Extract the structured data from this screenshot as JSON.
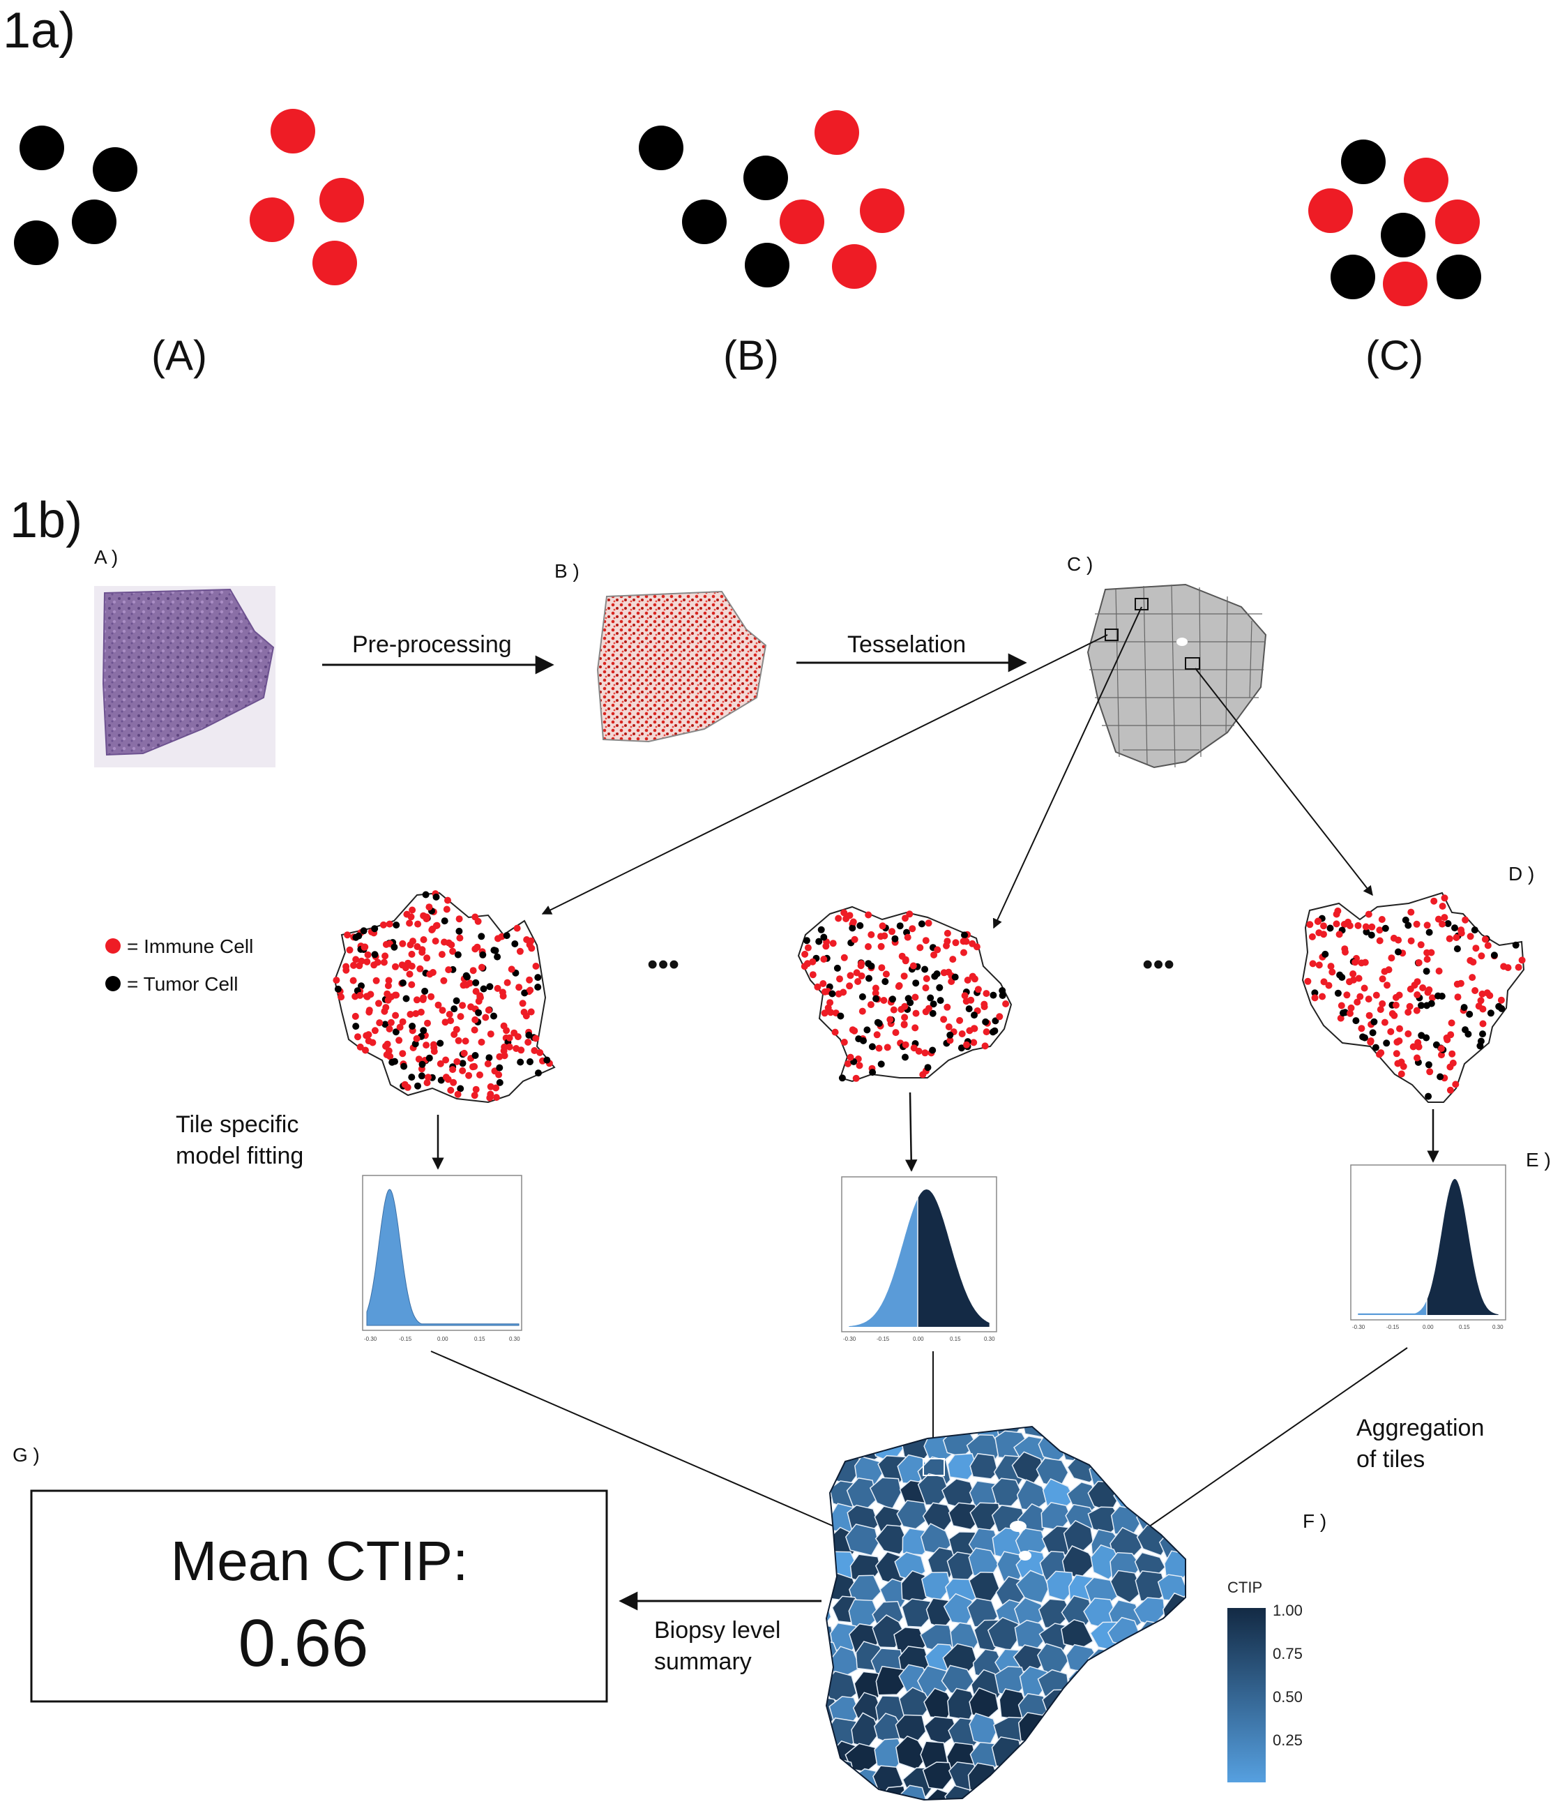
{
  "panel_1a": {
    "label": "1a)",
    "groups": [
      {
        "label": "(A)"
      },
      {
        "label": "(B)"
      },
      {
        "label": "(C)"
      }
    ],
    "colors": {
      "tumor": "#000000",
      "immune": "#ee1c25"
    }
  },
  "panel_1b": {
    "label": "1b)",
    "step_labels": {
      "a": "A )",
      "b": "B )",
      "c": "C )",
      "d": "D )",
      "e": "E )",
      "f": "F )",
      "g": "G )"
    },
    "flow_labels": {
      "preprocessing": "Pre-processing",
      "tesselation": "Tesselation",
      "tile_fit_1": "Tile specific",
      "tile_fit_2": "model fitting",
      "aggregation_1": "Aggregation",
      "aggregation_2": "of tiles",
      "summary_1": "Biopsy level",
      "summary_2": "summary"
    },
    "legend": {
      "immune": "= Immune Cell",
      "tumor": "= Tumor Cell",
      "immune_color": "#ee1c25",
      "tumor_color": "#000000"
    },
    "ellipsis": [
      "•••",
      "•••"
    ],
    "posterior_ticks": [
      "-0.30",
      "-0.15",
      "0.00",
      "0.15",
      "0.30"
    ],
    "colorbar": {
      "title": "CTIP",
      "ticks": [
        "1.00",
        "0.75",
        "0.50",
        "0.25"
      ],
      "color_low": "#56a0e0",
      "color_high": "#132a44"
    },
    "result": {
      "title": "Mean CTIP:",
      "value": "0.66"
    }
  }
}
